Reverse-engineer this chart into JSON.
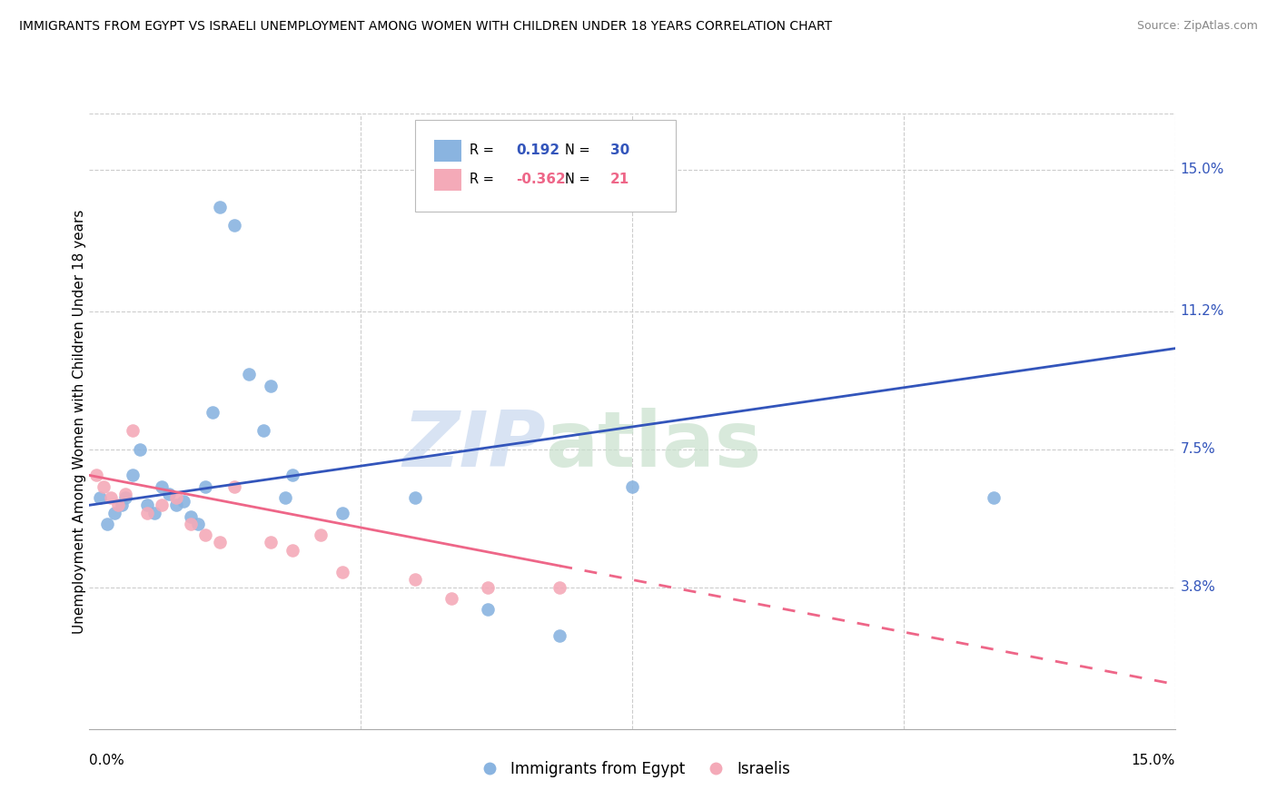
{
  "title": "IMMIGRANTS FROM EGYPT VS ISRAELI UNEMPLOYMENT AMONG WOMEN WITH CHILDREN UNDER 18 YEARS CORRELATION CHART",
  "source": "Source: ZipAtlas.com",
  "ylabel": "Unemployment Among Women with Children Under 18 years",
  "ytick_values": [
    3.8,
    7.5,
    11.2,
    15.0
  ],
  "xlim": [
    0.0,
    15.0
  ],
  "ylim": [
    0.0,
    16.5
  ],
  "legend_blue_R": "0.192",
  "legend_blue_N": "30",
  "legend_pink_R": "-0.362",
  "legend_pink_N": "21",
  "blue_color": "#8ab4e0",
  "pink_color": "#f4aab8",
  "blue_line_color": "#3355bb",
  "pink_line_color": "#ee6688",
  "blue_scatter_x": [
    0.15,
    0.25,
    0.35,
    0.45,
    0.5,
    0.6,
    0.7,
    0.8,
    0.9,
    1.0,
    1.1,
    1.2,
    1.3,
    1.4,
    1.5,
    1.6,
    1.7,
    1.8,
    2.0,
    2.2,
    2.4,
    2.5,
    2.7,
    2.8,
    3.5,
    4.5,
    5.5,
    6.5,
    7.5,
    12.5
  ],
  "blue_scatter_y": [
    6.2,
    5.5,
    5.8,
    6.0,
    6.2,
    6.8,
    7.5,
    6.0,
    5.8,
    6.5,
    6.3,
    6.0,
    6.1,
    5.7,
    5.5,
    6.5,
    8.5,
    14.0,
    13.5,
    9.5,
    8.0,
    9.2,
    6.2,
    6.8,
    5.8,
    6.2,
    3.2,
    2.5,
    6.5,
    6.2
  ],
  "pink_scatter_x": [
    0.1,
    0.2,
    0.3,
    0.4,
    0.5,
    0.6,
    0.8,
    1.0,
    1.2,
    1.4,
    1.6,
    1.8,
    2.0,
    2.5,
    2.8,
    3.2,
    3.5,
    4.5,
    5.0,
    5.5,
    6.5
  ],
  "pink_scatter_y": [
    6.8,
    6.5,
    6.2,
    6.0,
    6.3,
    8.0,
    5.8,
    6.0,
    6.2,
    5.5,
    5.2,
    5.0,
    6.5,
    5.0,
    4.8,
    5.2,
    4.2,
    4.0,
    3.5,
    3.8,
    3.8
  ],
  "blue_line_x0": 0.0,
  "blue_line_x1": 15.0,
  "blue_line_y0": 6.0,
  "blue_line_y1": 10.2,
  "pink_line_x0": 0.0,
  "pink_line_x1": 15.0,
  "pink_line_y0": 6.8,
  "pink_line_y1": 1.2,
  "pink_solid_end_x": 6.5
}
